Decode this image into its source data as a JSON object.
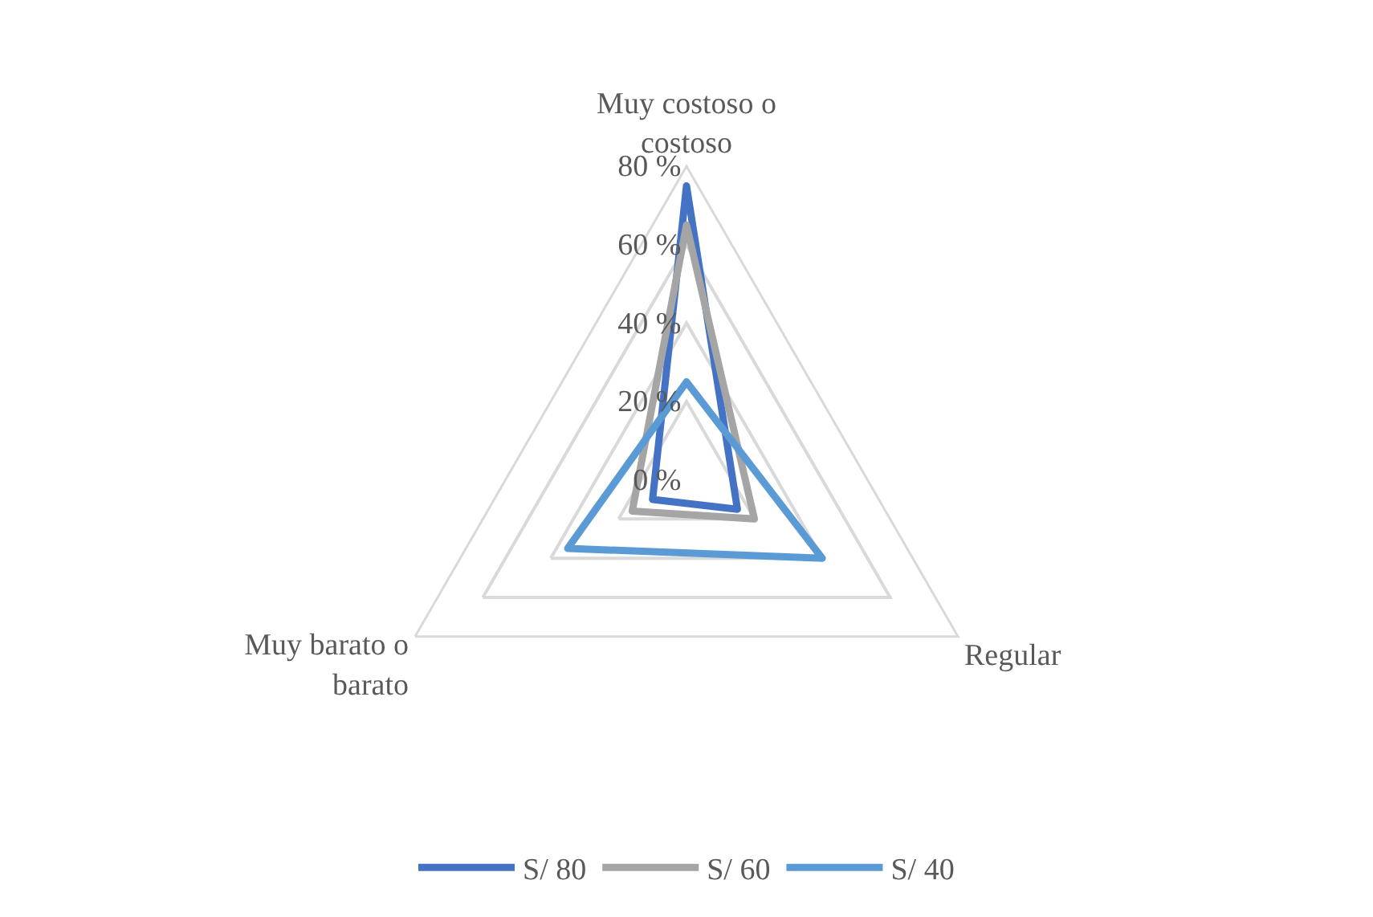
{
  "chart_data": {
    "type": "radar",
    "categories": [
      "Muy costoso o costoso",
      "Regular",
      "Muy barato o barato"
    ],
    "series": [
      {
        "name": "S/ 80",
        "color": "#4472c4",
        "values": [
          75,
          15,
          10
        ]
      },
      {
        "name": "S/ 60",
        "color": "#a5a5a5",
        "values": [
          65,
          20,
          16
        ]
      },
      {
        "name": "S/ 40",
        "color": "#5b9bd5",
        "values": [
          25,
          40,
          35
        ]
      }
    ],
    "ylim": [
      0,
      80
    ],
    "yticks": [
      {
        "value": 0,
        "label": "0 %"
      },
      {
        "value": 20,
        "label": "20 %"
      },
      {
        "value": 40,
        "label": "40 %"
      },
      {
        "value": 60,
        "label": "60 %"
      },
      {
        "value": 80,
        "label": "80 %"
      }
    ],
    "grid": true,
    "legend": "bottom",
    "marker": "none",
    "line_style": "solid"
  }
}
